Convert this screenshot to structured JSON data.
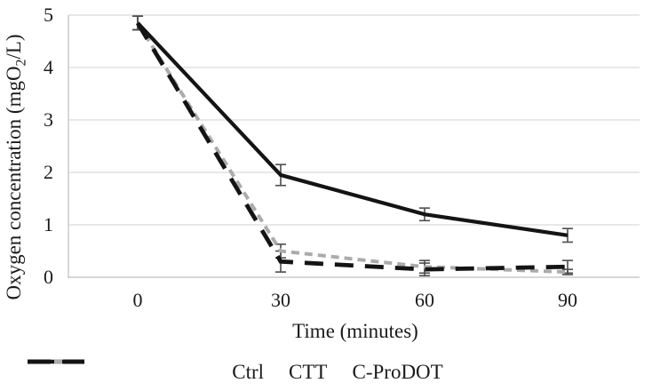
{
  "chart_data": {
    "type": "line",
    "title": "",
    "xlabel": "Time (minutes)",
    "ylabel": "Oxygen concentration (mgO2/L)",
    "ylabel_parts": {
      "pre": "Oxygen concentration (mgO",
      "sub": "2",
      "post": "/L)"
    },
    "categories": [
      "0",
      "30",
      "60",
      "90"
    ],
    "x_values_minutes": [
      0,
      30,
      60,
      90
    ],
    "yticks": [
      "0",
      "1",
      "2",
      "3",
      "4",
      "5"
    ],
    "ylim": [
      0,
      5
    ],
    "grid": true,
    "legend_position": "bottom",
    "error_bars": true,
    "series": [
      {
        "name": "Ctrl",
        "dash": "solid",
        "color": "#141414",
        "stroke_width": 4.2,
        "values": [
          4.85,
          1.95,
          1.2,
          0.8
        ],
        "errors": [
          0.13,
          0.2,
          0.12,
          0.13
        ]
      },
      {
        "name": "CTT",
        "dash": "short",
        "color": "#ababab",
        "stroke_width": 4.0,
        "values": [
          4.85,
          0.5,
          0.2,
          0.1
        ],
        "errors": [
          0.13,
          0.13,
          0.12,
          0.05
        ]
      },
      {
        "name": "C-ProDOT",
        "dash": "long",
        "color": "#141414",
        "stroke_width": 4.8,
        "values": [
          4.85,
          0.3,
          0.15,
          0.2
        ],
        "errors": [
          0.13,
          0.2,
          0.12,
          0.12
        ]
      }
    ],
    "gridline_color": "#dadada",
    "axis_line_color": "#bfbfbf",
    "error_bar_color": "#4d4d4d",
    "background_color": "#ffffff",
    "text_color": "#1a1a1a"
  }
}
